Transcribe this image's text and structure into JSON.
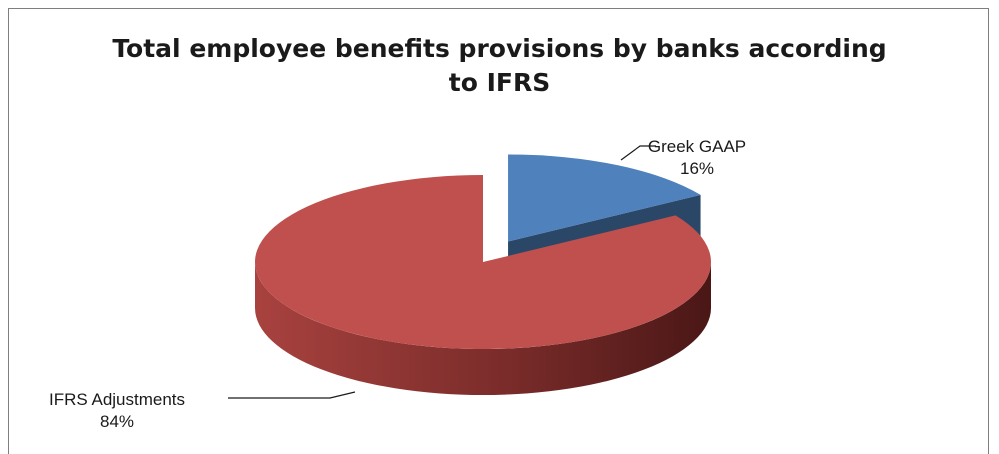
{
  "chart_data": {
    "type": "pie",
    "title": "Total employee benefits provisions by banks according to IFRS",
    "title_lines": [
      "Total employee benefits provisions by banks according",
      "to IFRS"
    ],
    "slices": [
      {
        "label": "Greek GAAP",
        "value": 16,
        "value_label": "16%",
        "color": "#4f81bd",
        "exploded": true
      },
      {
        "label": "IFRS Adjustments",
        "value": 84,
        "value_label": "84%",
        "color": "#c0504d",
        "exploded": false
      }
    ],
    "three_d": true,
    "legend": "none"
  }
}
